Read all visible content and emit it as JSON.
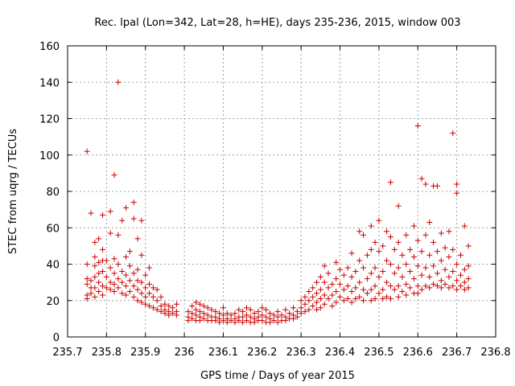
{
  "chart_data": {
    "type": "scatter",
    "title": "Rec. lpal (Lon=342, Lat=28, h=HE), days 235-236, 2015, window 003",
    "xlabel": "GPS time / Days of year 2015",
    "ylabel": "STEC from uqrg / TECUs",
    "xlim": [
      235.7,
      236.8
    ],
    "ylim": [
      0,
      160
    ],
    "xticks": [
      {
        "v": 235.7,
        "label": "235.7"
      },
      {
        "v": 235.8,
        "label": "235.8"
      },
      {
        "v": 235.9,
        "label": "235.9"
      },
      {
        "v": 236.0,
        "label": "236"
      },
      {
        "v": 236.1,
        "label": "236.1"
      },
      {
        "v": 236.2,
        "label": "236.2"
      },
      {
        "v": 236.3,
        "label": "236.3"
      },
      {
        "v": 236.4,
        "label": "236.4"
      },
      {
        "v": 236.5,
        "label": "236.5"
      },
      {
        "v": 236.6,
        "label": "236.6"
      },
      {
        "v": 236.7,
        "label": "236.7"
      },
      {
        "v": 236.8,
        "label": "236.8"
      }
    ],
    "yticks": [
      {
        "v": 0,
        "label": "0"
      },
      {
        "v": 20,
        "label": "20"
      },
      {
        "v": 40,
        "label": "40"
      },
      {
        "v": 60,
        "label": "60"
      },
      {
        "v": 80,
        "label": "80"
      },
      {
        "v": 100,
        "label": "100"
      },
      {
        "v": 120,
        "label": "120"
      },
      {
        "v": 140,
        "label": "140"
      },
      {
        "v": 160,
        "label": "160"
      }
    ],
    "grid": true,
    "marker": "+",
    "color": "#cc0000",
    "points": [
      [
        235.75,
        102
      ],
      [
        235.76,
        68
      ],
      [
        235.82,
        89
      ],
      [
        235.83,
        140
      ],
      [
        235.85,
        71
      ],
      [
        235.87,
        74
      ],
      [
        235.89,
        64
      ],
      [
        235.78,
        54
      ],
      [
        235.79,
        67
      ],
      [
        235.81,
        69
      ],
      [
        235.83,
        56
      ],
      [
        235.86,
        47
      ],
      [
        235.88,
        54
      ],
      [
        235.84,
        64
      ],
      [
        235.87,
        65
      ],
      [
        235.75,
        40
      ],
      [
        235.75,
        32
      ],
      [
        235.75,
        29
      ],
      [
        235.75,
        23
      ],
      [
        235.75,
        21
      ],
      [
        235.76,
        31
      ],
      [
        235.76,
        27
      ],
      [
        235.76,
        24
      ],
      [
        235.77,
        52
      ],
      [
        235.77,
        44
      ],
      [
        235.77,
        39
      ],
      [
        235.77,
        33
      ],
      [
        235.77,
        27
      ],
      [
        235.77,
        22
      ],
      [
        235.78,
        41
      ],
      [
        235.78,
        35
      ],
      [
        235.78,
        30
      ],
      [
        235.78,
        25
      ],
      [
        235.79,
        48
      ],
      [
        235.79,
        42
      ],
      [
        235.79,
        36
      ],
      [
        235.79,
        28
      ],
      [
        235.79,
        23
      ],
      [
        235.8,
        42
      ],
      [
        235.8,
        33
      ],
      [
        235.8,
        27
      ],
      [
        235.81,
        57
      ],
      [
        235.81,
        38
      ],
      [
        235.81,
        30
      ],
      [
        235.81,
        26
      ],
      [
        235.82,
        43
      ],
      [
        235.82,
        35
      ],
      [
        235.82,
        29
      ],
      [
        235.82,
        25
      ],
      [
        235.83,
        40
      ],
      [
        235.83,
        32
      ],
      [
        235.83,
        27
      ],
      [
        235.84,
        36
      ],
      [
        235.84,
        30
      ],
      [
        235.84,
        24
      ],
      [
        235.85,
        44
      ],
      [
        235.85,
        34
      ],
      [
        235.85,
        28
      ],
      [
        235.85,
        23
      ],
      [
        235.86,
        39
      ],
      [
        235.86,
        31
      ],
      [
        235.86,
        25
      ],
      [
        235.87,
        35
      ],
      [
        235.87,
        28
      ],
      [
        235.87,
        22
      ],
      [
        235.88,
        37
      ],
      [
        235.88,
        31
      ],
      [
        235.88,
        26
      ],
      [
        235.88,
        20
      ],
      [
        235.89,
        45
      ],
      [
        235.89,
        30
      ],
      [
        235.89,
        24
      ],
      [
        235.89,
        19
      ],
      [
        235.9,
        34
      ],
      [
        235.9,
        27
      ],
      [
        235.9,
        22
      ],
      [
        235.9,
        18
      ],
      [
        235.91,
        38
      ],
      [
        235.91,
        29
      ],
      [
        235.91,
        24
      ],
      [
        235.91,
        17
      ],
      [
        235.92,
        27
      ],
      [
        235.92,
        22
      ],
      [
        235.92,
        16
      ],
      [
        235.93,
        26
      ],
      [
        235.93,
        20
      ],
      [
        235.93,
        15
      ],
      [
        235.94,
        22
      ],
      [
        235.94,
        17
      ],
      [
        235.94,
        14
      ],
      [
        235.95,
        18
      ],
      [
        235.95,
        15
      ],
      [
        235.95,
        13
      ],
      [
        235.96,
        17
      ],
      [
        235.96,
        14
      ],
      [
        235.96,
        12
      ],
      [
        235.97,
        16
      ],
      [
        235.97,
        13
      ],
      [
        235.98,
        18
      ],
      [
        235.98,
        14
      ],
      [
        235.98,
        12
      ],
      [
        236.01,
        14
      ],
      [
        236.01,
        11
      ],
      [
        236.01,
        9
      ],
      [
        236.02,
        17
      ],
      [
        236.02,
        13
      ],
      [
        236.02,
        10
      ],
      [
        236.03,
        19
      ],
      [
        236.03,
        15
      ],
      [
        236.03,
        12
      ],
      [
        236.03,
        9
      ],
      [
        236.04,
        18
      ],
      [
        236.04,
        14
      ],
      [
        236.04,
        11
      ],
      [
        236.04,
        9
      ],
      [
        236.05,
        17
      ],
      [
        236.05,
        13
      ],
      [
        236.05,
        10
      ],
      [
        236.06,
        16
      ],
      [
        236.06,
        12
      ],
      [
        236.06,
        9
      ],
      [
        236.07,
        15
      ],
      [
        236.07,
        11
      ],
      [
        236.07,
        9
      ],
      [
        236.08,
        14
      ],
      [
        236.08,
        11
      ],
      [
        236.08,
        9
      ],
      [
        236.09,
        13
      ],
      [
        236.09,
        10
      ],
      [
        236.09,
        8
      ],
      [
        236.1,
        16
      ],
      [
        236.1,
        12
      ],
      [
        236.1,
        9
      ],
      [
        236.11,
        13
      ],
      [
        236.11,
        10
      ],
      [
        236.11,
        8
      ],
      [
        236.12,
        12
      ],
      [
        236.12,
        9
      ],
      [
        236.13,
        13
      ],
      [
        236.13,
        10
      ],
      [
        236.13,
        8
      ],
      [
        236.14,
        15
      ],
      [
        236.14,
        11
      ],
      [
        236.14,
        9
      ],
      [
        236.15,
        14
      ],
      [
        236.15,
        11
      ],
      [
        236.15,
        8
      ],
      [
        236.16,
        16
      ],
      [
        236.16,
        12
      ],
      [
        236.16,
        9
      ],
      [
        236.17,
        15
      ],
      [
        236.17,
        11
      ],
      [
        236.17,
        8
      ],
      [
        236.18,
        13
      ],
      [
        236.18,
        10
      ],
      [
        236.18,
        8
      ],
      [
        236.19,
        14
      ],
      [
        236.19,
        11
      ],
      [
        236.19,
        9
      ],
      [
        236.2,
        16
      ],
      [
        236.2,
        12
      ],
      [
        236.2,
        9
      ],
      [
        236.21,
        15
      ],
      [
        236.21,
        11
      ],
      [
        236.21,
        8
      ],
      [
        236.22,
        13
      ],
      [
        236.22,
        10
      ],
      [
        236.22,
        8
      ],
      [
        236.23,
        12
      ],
      [
        236.23,
        9
      ],
      [
        236.24,
        14
      ],
      [
        236.24,
        11
      ],
      [
        236.24,
        8
      ],
      [
        236.25,
        12
      ],
      [
        236.25,
        9
      ],
      [
        236.26,
        15
      ],
      [
        236.26,
        11
      ],
      [
        236.26,
        9
      ],
      [
        236.27,
        13
      ],
      [
        236.27,
        10
      ],
      [
        236.28,
        16
      ],
      [
        236.28,
        12
      ],
      [
        236.28,
        10
      ],
      [
        236.29,
        14
      ],
      [
        236.29,
        11
      ],
      [
        236.3,
        20
      ],
      [
        236.3,
        16
      ],
      [
        236.3,
        13
      ],
      [
        236.31,
        22
      ],
      [
        236.31,
        18
      ],
      [
        236.31,
        14
      ],
      [
        236.32,
        25
      ],
      [
        236.32,
        20
      ],
      [
        236.32,
        15
      ],
      [
        236.33,
        27
      ],
      [
        236.33,
        22
      ],
      [
        236.33,
        17
      ],
      [
        236.34,
        30
      ],
      [
        236.34,
        24
      ],
      [
        236.34,
        19
      ],
      [
        236.34,
        15
      ],
      [
        236.35,
        33
      ],
      [
        236.35,
        26
      ],
      [
        236.35,
        21
      ],
      [
        236.35,
        16
      ],
      [
        236.36,
        39
      ],
      [
        236.36,
        30
      ],
      [
        236.36,
        23
      ],
      [
        236.36,
        18
      ],
      [
        236.37,
        35
      ],
      [
        236.37,
        27
      ],
      [
        236.37,
        21
      ],
      [
        236.38,
        29
      ],
      [
        236.38,
        23
      ],
      [
        236.38,
        17
      ],
      [
        236.39,
        41
      ],
      [
        236.39,
        32
      ],
      [
        236.39,
        25
      ],
      [
        236.39,
        19
      ],
      [
        236.4,
        37
      ],
      [
        236.4,
        29
      ],
      [
        236.4,
        22
      ],
      [
        236.41,
        34
      ],
      [
        236.41,
        26
      ],
      [
        236.41,
        20
      ],
      [
        236.42,
        38
      ],
      [
        236.42,
        28
      ],
      [
        236.42,
        21
      ],
      [
        236.43,
        46
      ],
      [
        236.43,
        33
      ],
      [
        236.43,
        25
      ],
      [
        236.43,
        19
      ],
      [
        236.44,
        36
      ],
      [
        236.44,
        27
      ],
      [
        236.44,
        21
      ],
      [
        236.45,
        58
      ],
      [
        236.45,
        42
      ],
      [
        236.45,
        30
      ],
      [
        236.45,
        22
      ],
      [
        236.46,
        56
      ],
      [
        236.46,
        38
      ],
      [
        236.46,
        26
      ],
      [
        236.46,
        20
      ],
      [
        236.47,
        45
      ],
      [
        236.47,
        32
      ],
      [
        236.47,
        24
      ],
      [
        236.48,
        61
      ],
      [
        236.48,
        48
      ],
      [
        236.48,
        35
      ],
      [
        236.48,
        26
      ],
      [
        236.48,
        20
      ],
      [
        236.49,
        52
      ],
      [
        236.49,
        38
      ],
      [
        236.49,
        28
      ],
      [
        236.49,
        21
      ],
      [
        236.5,
        64
      ],
      [
        236.5,
        47
      ],
      [
        236.5,
        33
      ],
      [
        236.5,
        24
      ],
      [
        236.51,
        50
      ],
      [
        236.51,
        36
      ],
      [
        236.51,
        26
      ],
      [
        236.51,
        21
      ],
      [
        236.52,
        58
      ],
      [
        236.52,
        42
      ],
      [
        236.52,
        30
      ],
      [
        236.52,
        22
      ],
      [
        236.53,
        85
      ],
      [
        236.53,
        55
      ],
      [
        236.53,
        40
      ],
      [
        236.53,
        28
      ],
      [
        236.53,
        21
      ],
      [
        236.54,
        48
      ],
      [
        236.54,
        35
      ],
      [
        236.54,
        26
      ],
      [
        236.55,
        72
      ],
      [
        236.55,
        52
      ],
      [
        236.55,
        38
      ],
      [
        236.55,
        28
      ],
      [
        236.55,
        22
      ],
      [
        236.56,
        45
      ],
      [
        236.56,
        33
      ],
      [
        236.56,
        25
      ],
      [
        236.57,
        56
      ],
      [
        236.57,
        40
      ],
      [
        236.57,
        29
      ],
      [
        236.57,
        23
      ],
      [
        236.58,
        48
      ],
      [
        236.58,
        36
      ],
      [
        236.58,
        27
      ],
      [
        236.59,
        61
      ],
      [
        236.59,
        44
      ],
      [
        236.59,
        32
      ],
      [
        236.59,
        24
      ],
      [
        236.6,
        116
      ],
      [
        236.6,
        53
      ],
      [
        236.6,
        39
      ],
      [
        236.6,
        28
      ],
      [
        236.6,
        24
      ],
      [
        236.61,
        87
      ],
      [
        236.61,
        47
      ],
      [
        236.61,
        34
      ],
      [
        236.61,
        26
      ],
      [
        236.62,
        84
      ],
      [
        236.62,
        56
      ],
      [
        236.62,
        38
      ],
      [
        236.62,
        28
      ],
      [
        236.63,
        63
      ],
      [
        236.63,
        45
      ],
      [
        236.63,
        33
      ],
      [
        236.63,
        27
      ],
      [
        236.64,
        83
      ],
      [
        236.64,
        52
      ],
      [
        236.64,
        39
      ],
      [
        236.64,
        29
      ],
      [
        236.65,
        83
      ],
      [
        236.65,
        47
      ],
      [
        236.65,
        35
      ],
      [
        236.65,
        28
      ],
      [
        236.66,
        57
      ],
      [
        236.66,
        42
      ],
      [
        236.66,
        31
      ],
      [
        236.66,
        27
      ],
      [
        236.67,
        49
      ],
      [
        236.67,
        37
      ],
      [
        236.67,
        29
      ],
      [
        236.68,
        58
      ],
      [
        236.68,
        44
      ],
      [
        236.68,
        33
      ],
      [
        236.68,
        27
      ],
      [
        236.69,
        112
      ],
      [
        236.69,
        48
      ],
      [
        236.69,
        36
      ],
      [
        236.69,
        28
      ],
      [
        236.7,
        84
      ],
      [
        236.7,
        79
      ],
      [
        236.7,
        40
      ],
      [
        236.7,
        31
      ],
      [
        236.7,
        26
      ],
      [
        236.71,
        45
      ],
      [
        236.71,
        34
      ],
      [
        236.71,
        28
      ],
      [
        236.72,
        61
      ],
      [
        236.72,
        37
      ],
      [
        236.72,
        30
      ],
      [
        236.72,
        26
      ],
      [
        236.73,
        50
      ],
      [
        236.73,
        39
      ],
      [
        236.73,
        32
      ],
      [
        236.73,
        27
      ]
    ]
  }
}
